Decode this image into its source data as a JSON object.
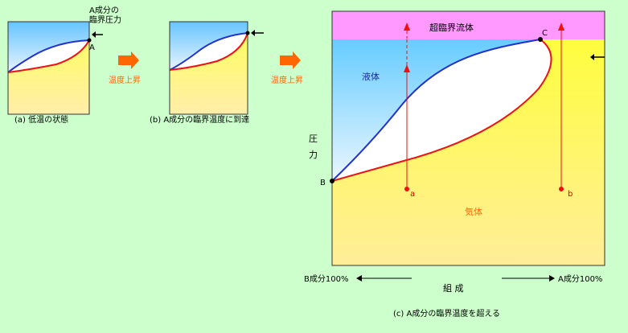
{
  "panel_a": {
    "caption": "(a) 低温の状態",
    "note_line1": "A成分の",
    "note_line2": "臨界圧力",
    "point_a": "A"
  },
  "panel_b": {
    "caption": "(b) A成分の臨界温度に到達"
  },
  "arrows": {
    "step1_label": "温度上昇",
    "step2_label": "温度上昇"
  },
  "panel_c": {
    "caption": "(c) A成分の臨界温度を超える",
    "supercritical_label": "超臨界流体",
    "liquid_label": "液体",
    "gas_label": "気体",
    "point_b": "B",
    "point_c": "C",
    "path_a_label": "a",
    "path_b_label": "b",
    "y_axis_char1": "圧",
    "y_axis_char2": "力",
    "x_axis_label": "組 成",
    "x_left_label": "B成分100%",
    "x_right_label": "A成分100%"
  },
  "colors": {
    "background": "#ccffcc",
    "liquid_top": "#66ccff",
    "liquid_bottom": "#e8f4ff",
    "gas_top": "#ffff33",
    "gas_bottom": "#ffee88",
    "supercritical": "#ff99ff",
    "bubble_curve": "#2233cc",
    "dew_curve": "#ee1111",
    "step_arrow": "#ff6600"
  }
}
